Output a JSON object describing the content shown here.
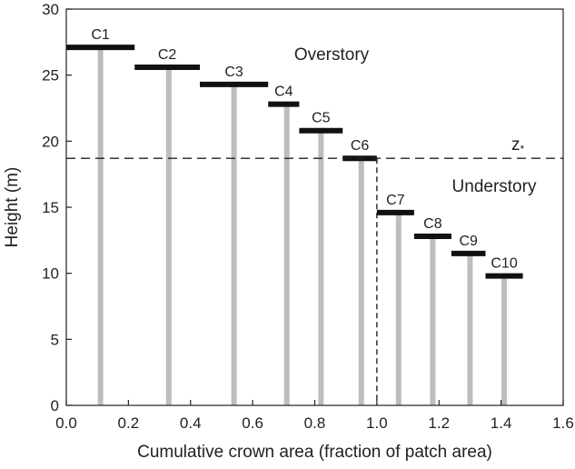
{
  "chart_data": {
    "type": "bar",
    "xlabel": "Cumulative crown area (fraction of patch area)",
    "ylabel": "Height (m)",
    "xlim": [
      0.0,
      1.6
    ],
    "ylim": [
      0,
      30
    ],
    "x_ticks": [
      "0.0",
      "0.2",
      "0.4",
      "0.6",
      "0.8",
      "1.0",
      "1.2",
      "1.4",
      "1.6"
    ],
    "y_ticks": [
      "0",
      "5",
      "10",
      "15",
      "20",
      "25",
      "30"
    ],
    "grid": false,
    "cohorts": [
      {
        "label": "C1",
        "stem_x": 0.11,
        "crown_x0": 0.0,
        "crown_x1": 0.22,
        "height": 27.1
      },
      {
        "label": "C2",
        "stem_x": 0.33,
        "crown_x0": 0.22,
        "crown_x1": 0.43,
        "height": 25.6
      },
      {
        "label": "C3",
        "stem_x": 0.54,
        "crown_x0": 0.43,
        "crown_x1": 0.65,
        "height": 24.3
      },
      {
        "label": "C4",
        "stem_x": 0.71,
        "crown_x0": 0.65,
        "crown_x1": 0.75,
        "height": 22.8
      },
      {
        "label": "C5",
        "stem_x": 0.82,
        "crown_x0": 0.75,
        "crown_x1": 0.89,
        "height": 20.8
      },
      {
        "label": "C6",
        "stem_x": 0.95,
        "crown_x0": 0.89,
        "crown_x1": 1.0,
        "height": 18.7
      },
      {
        "label": "C7",
        "stem_x": 1.07,
        "crown_x0": 1.0,
        "crown_x1": 1.12,
        "height": 14.6
      },
      {
        "label": "C8",
        "stem_x": 1.18,
        "crown_x0": 1.12,
        "crown_x1": 1.24,
        "height": 12.8
      },
      {
        "label": "C9",
        "stem_x": 1.3,
        "crown_x0": 1.24,
        "crown_x1": 1.35,
        "height": 11.5
      },
      {
        "label": "C10",
        "stem_x": 1.41,
        "crown_x0": 1.35,
        "crown_x1": 1.47,
        "height": 9.8
      }
    ],
    "threshold": {
      "label": "z*",
      "height": 18.7,
      "x_cutoff": 1.0
    },
    "annotations": {
      "overstory": "Overstory",
      "understory": "Understory"
    },
    "colors": {
      "crown": "#111111",
      "stem": "#bdbdbd",
      "axis": "#222222",
      "threshold_line": "#222222"
    }
  }
}
